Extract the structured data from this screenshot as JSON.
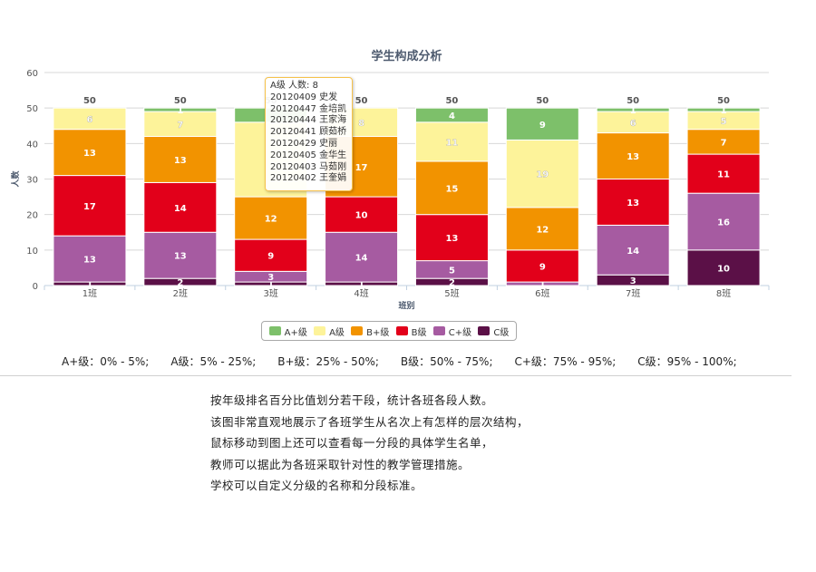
{
  "chart_data": {
    "type": "bar",
    "stacked": true,
    "title": "学生构成分析",
    "xlabel": "班别",
    "ylabel": "人数",
    "ylim": [
      0,
      60
    ],
    "yticks": [
      0,
      10,
      20,
      30,
      40,
      50,
      60
    ],
    "grid": true,
    "legend_position": "bottom",
    "categories": [
      "1班",
      "2班",
      "3班",
      "4班",
      "5班",
      "6班",
      "7班",
      "8班"
    ],
    "totals": [
      50,
      50,
      50,
      50,
      50,
      50,
      50,
      50
    ],
    "series": [
      {
        "name": "C级",
        "color": "#5b1047",
        "values": [
          1,
          2,
          1,
          1,
          2,
          0,
          3,
          10
        ],
        "labels": [
          "1",
          "2",
          "1",
          "1",
          "2",
          "",
          "3",
          "10"
        ]
      },
      {
        "name": "C+级",
        "color": "#a65ba1",
        "values": [
          13,
          13,
          3,
          14,
          5,
          1,
          14,
          16
        ],
        "labels": [
          "13",
          "13",
          "3",
          "14",
          "5",
          "1",
          "14",
          "16"
        ]
      },
      {
        "name": "B级",
        "color": "#e2001a",
        "values": [
          17,
          14,
          9,
          10,
          13,
          9,
          13,
          11
        ],
        "labels": [
          "17",
          "14",
          "9",
          "10",
          "13",
          "9",
          "13",
          "11"
        ]
      },
      {
        "name": "B+级",
        "color": "#f29300",
        "values": [
          13,
          13,
          12,
          17,
          15,
          12,
          13,
          7
        ],
        "labels": [
          "13",
          "13",
          "12",
          "17",
          "15",
          "12",
          "13",
          "7"
        ]
      },
      {
        "name": "A级",
        "color": "#fdf39a",
        "values": [
          6,
          7,
          21,
          8,
          11,
          19,
          6,
          5
        ],
        "labels": [
          "6",
          "7",
          "",
          "8",
          "11",
          "19",
          "6",
          "5"
        ]
      },
      {
        "name": "A+级",
        "color": "#7dc06a",
        "values": [
          0,
          1,
          4,
          0,
          4,
          9,
          1,
          1
        ],
        "labels": [
          "",
          "1",
          "",
          "",
          "4",
          "9",
          "1",
          "1"
        ]
      }
    ],
    "legend_order": [
      "A+级",
      "A级",
      "B+级",
      "B级",
      "C+级",
      "C级"
    ],
    "tooltip": {
      "header": "A级 人数: 8",
      "students": [
        "20120409 史发",
        "20120447 金培凯",
        "20120444 王家海",
        "20120441 顾茹桥",
        "20120429 史丽",
        "20120405 金华生",
        "20120403 马茹刚",
        "20120402 王奎娟"
      ]
    }
  },
  "grade_ranges": [
    "A+级：0% - 5%;",
    "A级：5% - 25%;",
    "B+级：25% - 50%;",
    "B级：50% - 75%;",
    "C+级：75% - 95%;",
    "C级：95% - 100%;"
  ],
  "description": [
    "按年级排名百分比值划分若干段，统计各班各段人数。",
    "该图非常直观地展示了各班学生从名次上有怎样的层次结构，",
    "鼠标移动到图上还可以查看每一分段的具体学生名单，",
    "教师可以据此为各班采取针对性的教学管理措施。",
    "学校可以自定义分级的名称和分段标准。"
  ]
}
